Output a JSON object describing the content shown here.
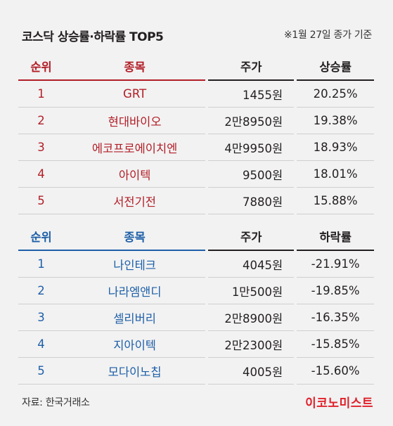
{
  "header": {
    "title": "코스닥 상승률·하락률 TOP5",
    "note": "※1월 27일 종가 기준"
  },
  "gainers": {
    "columns": [
      "순위",
      "종목",
      "주가",
      "상승률"
    ],
    "rows": [
      {
        "rank": "1",
        "name": "GRT",
        "price": "1455원",
        "rate": "20.25%"
      },
      {
        "rank": "2",
        "name": "현대바이오",
        "price": "2만8950원",
        "rate": "19.38%"
      },
      {
        "rank": "3",
        "name": "에코프로에이치엔",
        "price": "4만9950원",
        "rate": "18.93%"
      },
      {
        "rank": "4",
        "name": "아이텍",
        "price": "9500원",
        "rate": "18.01%"
      },
      {
        "rank": "5",
        "name": "서전기전",
        "price": "7880원",
        "rate": "15.88%"
      }
    ]
  },
  "losers": {
    "columns": [
      "순위",
      "종목",
      "주가",
      "하락률"
    ],
    "rows": [
      {
        "rank": "1",
        "name": "나인테크",
        "price": "4045원",
        "rate": "-21.91%"
      },
      {
        "rank": "2",
        "name": "나라엠앤디",
        "price": "1만500원",
        "rate": "-19.85%"
      },
      {
        "rank": "3",
        "name": "셀리버리",
        "price": "2만8900원",
        "rate": "-16.35%"
      },
      {
        "rank": "4",
        "name": "지아이텍",
        "price": "2만2300원",
        "rate": "-15.85%"
      },
      {
        "rank": "5",
        "name": "모다이노칩",
        "price": "4005원",
        "rate": "-15.60%"
      }
    ]
  },
  "footer": {
    "source": "자료: 한국거래소",
    "logo": "이코노미스트"
  },
  "colors": {
    "gainers_accent": "#b21e27",
    "losers_accent": "#1d5fa8",
    "logo": "#e0202a",
    "background": "#f2f2f2"
  }
}
